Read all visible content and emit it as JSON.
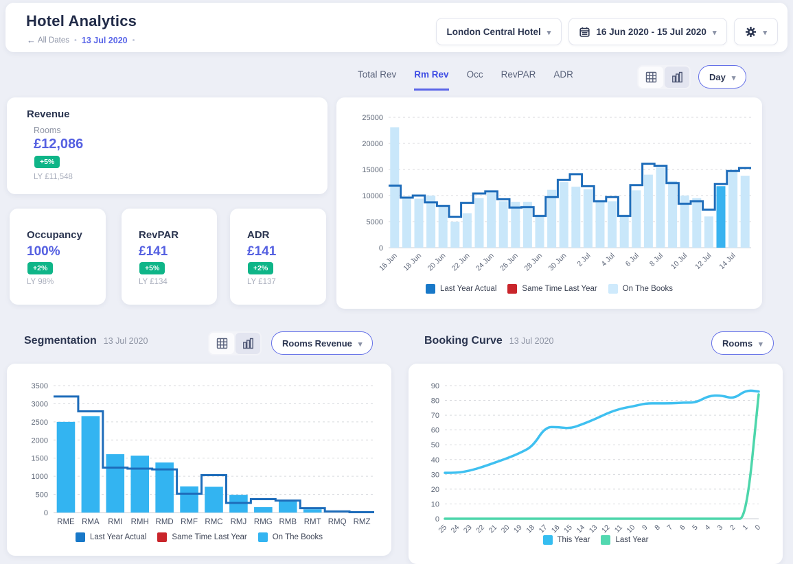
{
  "header": {
    "title": "Hotel Analytics",
    "back_label": "All Dates",
    "current_date": "13 Jul 2020",
    "hotel_selector": "London Central Hotel",
    "date_range": "16 Jun 2020 - 15 Jul 2020"
  },
  "tabs": {
    "items": [
      "Total Rev",
      "Rm Rev",
      "Occ",
      "RevPAR",
      "ADR"
    ],
    "active": "Rm Rev",
    "granularity": "Day"
  },
  "kpis": {
    "revenue": {
      "title": "Revenue",
      "subtitle": "Rooms",
      "value": "£12,086",
      "change": "+5%",
      "ly": "LY £11,548"
    },
    "occupancy": {
      "title": "Occupancy",
      "value": "100%",
      "change": "+2%",
      "ly": "LY 98%"
    },
    "revpar": {
      "title": "RevPAR",
      "value": "£141",
      "change": "+5%",
      "ly": "LY £134"
    },
    "adr": {
      "title": "ADR",
      "value": "£141",
      "change": "+2%",
      "ly": "LY £137"
    }
  },
  "sections": {
    "segmentation": {
      "title": "Segmentation",
      "date": "13 Jul 2020",
      "selector": "Rooms Revenue"
    },
    "booking_curve": {
      "title": "Booking Curve",
      "date": "13 Jul 2020",
      "selector": "Rooms"
    }
  },
  "icons": {
    "back_arrow": "←",
    "chevron_down": "▾",
    "dot_separator": "•",
    "calendar": "calendar-icon",
    "gear": "gear-icon",
    "table_view": "table-grid-icon",
    "chart_view": "bar-chart-icon"
  },
  "colors": {
    "accent": "#5560e1",
    "positive_badge": "#0fb588",
    "active_tab": "#3f4ee4",
    "page_bg": "#edeff6",
    "step_line": "#1d6cba",
    "otb_bar": "#c9e7fa",
    "otb_highlight": "#38b3f0",
    "seg_bar": "#33b4f1",
    "this_year_line": "#3fc0f0",
    "last_year_line": "#4dd6ab",
    "red_legend": "#c9252b"
  },
  "chart_data": [
    {
      "id": "daily_rooms_revenue",
      "type": "bar",
      "title": "Rooms Revenue by Day",
      "categories": [
        "16 Jun",
        "17 Jun",
        "18 Jun",
        "19 Jun",
        "20 Jun",
        "21 Jun",
        "22 Jun",
        "23 Jun",
        "24 Jun",
        "25 Jun",
        "26 Jun",
        "27 Jun",
        "28 Jun",
        "29 Jun",
        "30 Jun",
        "1 Jul",
        "2 Jul",
        "3 Jul",
        "4 Jul",
        "5 Jul",
        "6 Jul",
        "7 Jul",
        "8 Jul",
        "9 Jul",
        "10 Jul",
        "11 Jul",
        "12 Jul",
        "13 Jul",
        "14 Jul",
        "15 Jul"
      ],
      "series": [
        {
          "name": "On The Books",
          "type": "bar",
          "color": "#c9e7fa",
          "highlight_color": "#38b3f0",
          "values": [
            23100,
            9500,
            9400,
            10000,
            7900,
            5000,
            6600,
            9500,
            10600,
            8900,
            8800,
            8800,
            6300,
            11100,
            12600,
            11700,
            11200,
            8800,
            8900,
            6000,
            11000,
            14000,
            15400,
            12800,
            10000,
            9500,
            6000,
            11800,
            14700,
            13800
          ]
        },
        {
          "name": "Last Year Actual",
          "type": "step",
          "color": "#1d6cba",
          "values": [
            11900,
            9600,
            10000,
            8700,
            8000,
            5900,
            8600,
            10400,
            10800,
            9300,
            7700,
            7800,
            6100,
            9700,
            13000,
            14100,
            11800,
            8900,
            9700,
            6100,
            12000,
            16100,
            15700,
            12400,
            8400,
            8900,
            7300,
            12200,
            14700,
            15300
          ]
        },
        {
          "name": "Same Time Last Year",
          "type": "step",
          "color": "#c9252b",
          "values": []
        }
      ],
      "highlight_category": "13 Jul",
      "ylim": [
        0,
        25000
      ],
      "ytick_step": 5000,
      "xlabel_every": 2,
      "xlabel_rotate": true,
      "grid": true,
      "legend_position": "bottom",
      "legend": [
        {
          "label": "Last Year Actual",
          "color": "#1878c8"
        },
        {
          "label": "Same Time Last Year",
          "color": "#c9252b"
        },
        {
          "label": "On The Books",
          "color": "#cfeafc"
        }
      ]
    },
    {
      "id": "segmentation_rooms_revenue",
      "type": "bar",
      "title": "Segmentation Rooms Revenue",
      "categories": [
        "RME",
        "RMA",
        "RMI",
        "RMH",
        "RMD",
        "RMF",
        "RMC",
        "RMJ",
        "RMG",
        "RMB",
        "RMT",
        "RMQ",
        "RMZ"
      ],
      "series": [
        {
          "name": "On The Books",
          "type": "bar",
          "color": "#33b4f1",
          "values": [
            2500,
            2660,
            1610,
            1570,
            1380,
            720,
            710,
            490,
            150,
            310,
            90,
            0,
            0
          ]
        },
        {
          "name": "Last Year Actual",
          "type": "step",
          "color": "#1d6cba",
          "values": [
            3200,
            2790,
            1240,
            1210,
            1190,
            520,
            1030,
            265,
            370,
            330,
            120,
            30,
            10
          ]
        },
        {
          "name": "Same Time Last Year",
          "type": "step",
          "color": "#c9252b",
          "values": []
        }
      ],
      "ylim": [
        0,
        3500
      ],
      "ytick_step": 500,
      "xlabel_every": 1,
      "xlabel_rotate": false,
      "grid": true,
      "legend_position": "bottom",
      "legend": [
        {
          "label": "Last Year Actual",
          "color": "#1878c8"
        },
        {
          "label": "Same Time Last Year",
          "color": "#c9252b"
        },
        {
          "label": "On The Books",
          "color": "#33b4f1"
        }
      ]
    },
    {
      "id": "booking_curve_rooms",
      "type": "line",
      "title": "Booking Curve Rooms",
      "x": [
        "25",
        "24",
        "23",
        "22",
        "21",
        "20",
        "19",
        "18",
        "17",
        "16",
        "15",
        "14",
        "13",
        "12",
        "11",
        "10",
        "9",
        "8",
        "7",
        "6",
        "5",
        "4",
        "3",
        "2",
        "1",
        "0"
      ],
      "series": [
        {
          "name": "This Year",
          "color": "#3fc0f0",
          "values": [
            31,
            31,
            32.5,
            35,
            38,
            41,
            44.5,
            49,
            62,
            62,
            61,
            64,
            67.5,
            71.5,
            74.5,
            76,
            78,
            78,
            78,
            78.5,
            78.5,
            83,
            83.5,
            81,
            87,
            86
          ]
        },
        {
          "name": "Last Year",
          "color": "#4dd6ab",
          "values": [
            0,
            0,
            0,
            0,
            0,
            0,
            0,
            0,
            0,
            0,
            0,
            0,
            0,
            0,
            0,
            0,
            0,
            0,
            0,
            0,
            0,
            0,
            0,
            0,
            0,
            84
          ]
        }
      ],
      "ylim": [
        0,
        90
      ],
      "ytick_step": 10,
      "xlabel_rotate": true,
      "grid": true,
      "legend_position": "bottom",
      "legend": [
        {
          "label": "This Year",
          "color": "#35bdf0"
        },
        {
          "label": "Last Year",
          "color": "#52d8b0"
        }
      ]
    }
  ]
}
